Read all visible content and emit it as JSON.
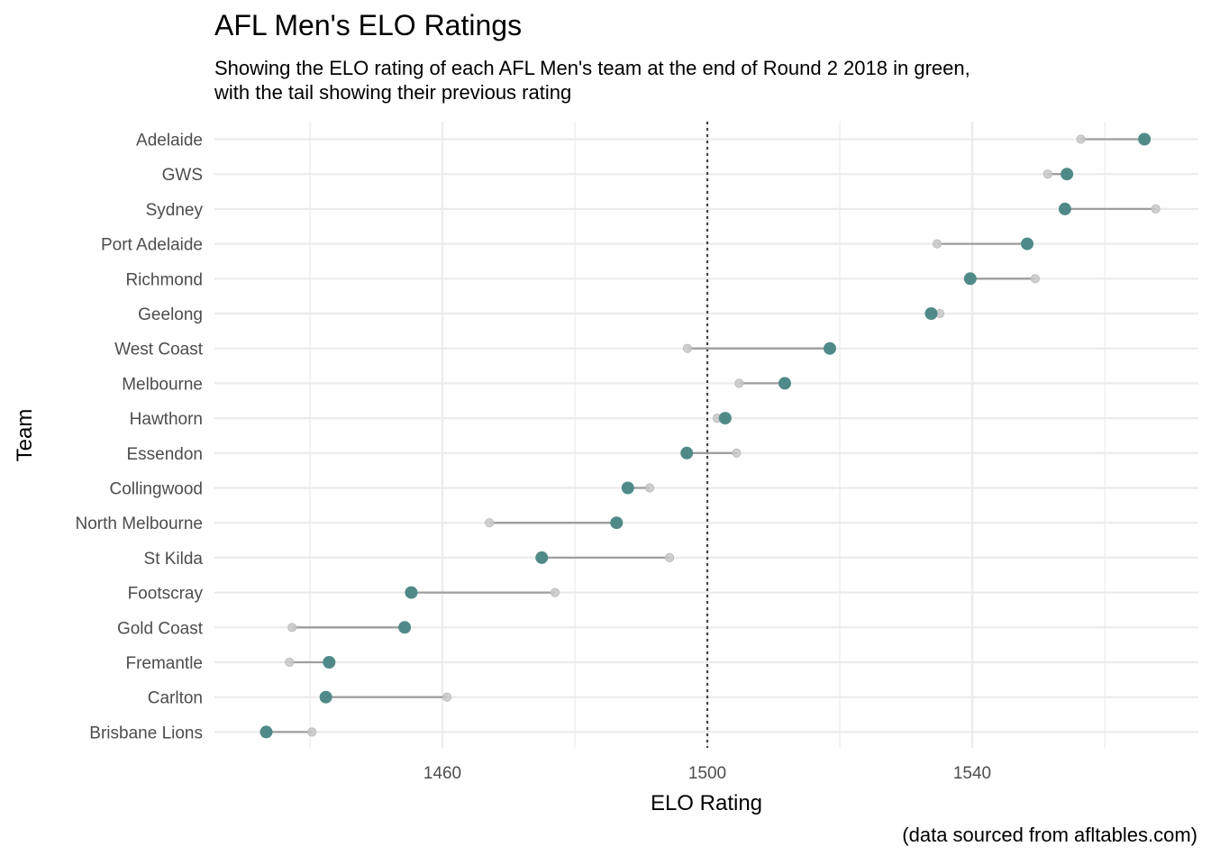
{
  "title": "AFL Men's ELO Ratings",
  "subtitle": "Showing the ELO rating of each AFL Men's team at the end of Round 2  2018 in green,\nwith the tail showing their previous rating",
  "caption": "(data sourced from afltables.com)",
  "chart_data": {
    "type": "dumbbell",
    "xlabel": "ELO Rating",
    "ylabel": "Team",
    "xlim": [
      1426,
      1569
    ],
    "x_ticks": [
      1460,
      1500,
      1540
    ],
    "reference_line": 1500,
    "grid": true,
    "current_color": "#508a88",
    "previous_color": "#c8c8c8",
    "segment_color": "#9e9e9e",
    "teams": [
      "Adelaide",
      "GWS",
      "Sydney",
      "Port Adelaide",
      "Richmond",
      "Geelong",
      "West Coast",
      "Melbourne",
      "Hawthorn",
      "Essendon",
      "Collingwood",
      "North Melbourne",
      "St Kilda",
      "Footscray",
      "Gold Coast",
      "Fremantle",
      "Carlton",
      "Brisbane Lions"
    ],
    "series": [
      {
        "name": "current",
        "values": [
          1566.0,
          1554.3,
          1554.0,
          1548.3,
          1539.7,
          1533.8,
          1518.5,
          1511.7,
          1502.7,
          1496.9,
          1488.0,
          1486.3,
          1475.0,
          1455.3,
          1454.3,
          1442.9,
          1442.4,
          1433.4
        ]
      },
      {
        "name": "previous",
        "values": [
          1556.4,
          1551.4,
          1567.7,
          1534.7,
          1549.5,
          1535.1,
          1497.0,
          1504.8,
          1501.5,
          1504.4,
          1491.3,
          1467.1,
          1494.3,
          1477.0,
          1437.3,
          1436.9,
          1460.7,
          1440.3
        ]
      }
    ]
  }
}
